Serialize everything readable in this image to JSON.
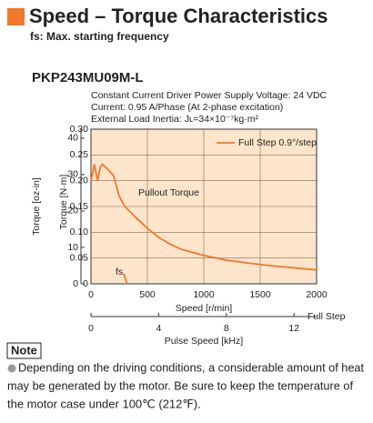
{
  "header": {
    "title": "Speed – Torque Characteristics",
    "subtitle": "fs: Max. starting frequency"
  },
  "chart_data": {
    "type": "line",
    "title": "PKP243MU09M-L",
    "conditions": [
      "Constant Current Driver   Power Supply Voltage: 24 VDC",
      "Current: 0.95 A/Phase (At 2-phase excitation)",
      "External Load Inertia: Jʟ=34×10⁻⁷kg·m²"
    ],
    "x_label": "Speed [r/min]",
    "x2_label": "Pulse Speed [kHz]",
    "x2_note": "Full Step",
    "y_label": "Torque [N·m]",
    "y2_label": "Torque [oz-in]",
    "xlim": [
      0,
      2000
    ],
    "xticks": [
      0,
      500,
      1000,
      1500,
      2000
    ],
    "x2lim": [
      0,
      13.333
    ],
    "x2ticks": [
      0,
      4,
      8,
      12
    ],
    "ylim": [
      0,
      0.3
    ],
    "yticks": [
      0,
      0.05,
      {
        "value": 0.1,
        "label": "0.10"
      },
      0.15,
      {
        "value": 0.2,
        "label": "0.20"
      },
      0.25,
      {
        "value": 0.3,
        "label": "0.30"
      }
    ],
    "y2lim": [
      0,
      42.48
    ],
    "y2ticks": [
      0,
      10,
      20,
      30,
      40
    ],
    "grid": true,
    "legend": "upper right",
    "series": [
      {
        "name": "Full Step 0.9°/step",
        "color": "#f07828",
        "x": [
          0,
          15,
          30,
          45,
          60,
          80,
          100,
          150,
          200,
          250,
          300,
          400,
          500,
          600,
          700,
          800,
          1000,
          1200,
          1400,
          1600,
          1800,
          2000
        ],
        "values": [
          0.2,
          0.215,
          0.232,
          0.215,
          0.2,
          0.225,
          0.232,
          0.222,
          0.21,
          0.17,
          0.15,
          0.128,
          0.108,
          0.09,
          0.077,
          0.067,
          0.055,
          0.046,
          0.04,
          0.035,
          0.031,
          0.027
        ]
      }
    ],
    "fs_line": {
      "label": "fs",
      "x": [
        290,
        320
      ],
      "values": [
        0.02,
        0
      ]
    },
    "annotations": [
      "Pullout Torque"
    ]
  },
  "note": {
    "label": "Note",
    "text": [
      "Depending on the driving conditions, a considerable amount of heat",
      "may be generated by the motor. Be sure to keep the temperature of",
      "the motor case under 100℃ (212℉)."
    ]
  }
}
